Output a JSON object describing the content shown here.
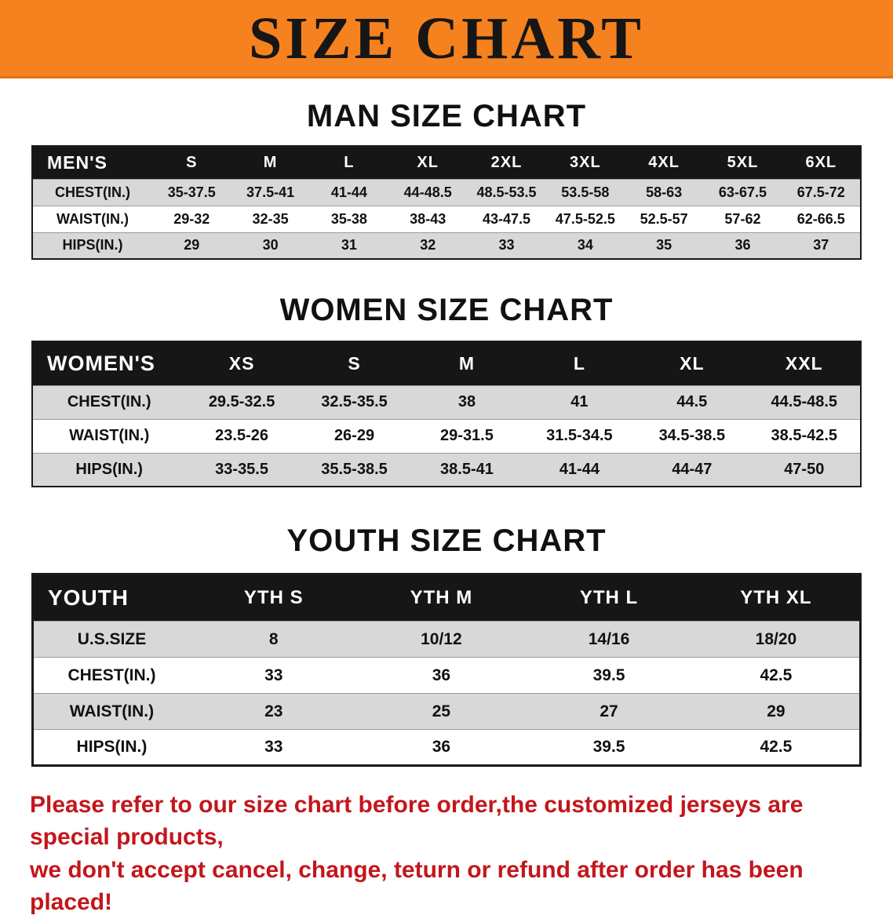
{
  "banner": {
    "title": "SIZE CHART",
    "bg_color": "#f5821f"
  },
  "sections": [
    {
      "heading": "MAN SIZE CHART",
      "table": {
        "header": [
          "MEN'S",
          "S",
          "M",
          "L",
          "XL",
          "2XL",
          "3XL",
          "4XL",
          "5XL",
          "6XL"
        ],
        "rows": [
          [
            "CHEST(IN.)",
            "35-37.5",
            "37.5-41",
            "41-44",
            "44-48.5",
            "48.5-53.5",
            "53.5-58",
            "58-63",
            "63-67.5",
            "67.5-72"
          ],
          [
            "WAIST(IN.)",
            "29-32",
            "32-35",
            "35-38",
            "38-43",
            "43-47.5",
            "47.5-52.5",
            "52.5-57",
            "57-62",
            "62-66.5"
          ],
          [
            "HIPS(IN.)",
            "29",
            "30",
            "31",
            "32",
            "33",
            "34",
            "35",
            "36",
            "37"
          ]
        ]
      }
    },
    {
      "heading": "WOMEN SIZE CHART",
      "table": {
        "header": [
          "WOMEN'S",
          "XS",
          "S",
          "M",
          "L",
          "XL",
          "XXL"
        ],
        "rows": [
          [
            "CHEST(IN.)",
            "29.5-32.5",
            "32.5-35.5",
            "38",
            "41",
            "44.5",
            "44.5-48.5"
          ],
          [
            "WAIST(IN.)",
            "23.5-26",
            "26-29",
            "29-31.5",
            "31.5-34.5",
            "34.5-38.5",
            "38.5-42.5"
          ],
          [
            "HIPS(IN.)",
            "33-35.5",
            "35.5-38.5",
            "38.5-41",
            "41-44",
            "44-47",
            "47-50"
          ]
        ]
      }
    },
    {
      "heading": "YOUTH SIZE CHART",
      "table": {
        "header": [
          "YOUTH",
          "YTH S",
          "YTH M",
          "YTH L",
          "YTH XL"
        ],
        "rows": [
          [
            "U.S.SIZE",
            "8",
            "10/12",
            "14/16",
            "18/20"
          ],
          [
            "CHEST(IN.)",
            "33",
            "36",
            "39.5",
            "42.5"
          ],
          [
            "WAIST(IN.)",
            "23",
            "25",
            "27",
            "29"
          ],
          [
            "HIPS(IN.)",
            "33",
            "36",
            "39.5",
            "42.5"
          ]
        ]
      }
    }
  ],
  "disclaimer": {
    "line1": "Please refer to our size chart before order,the customized jerseys are special products,",
    "line2": "we don't accept cancel, change, teturn or refund after order has been placed!",
    "color": "#c3161c"
  }
}
